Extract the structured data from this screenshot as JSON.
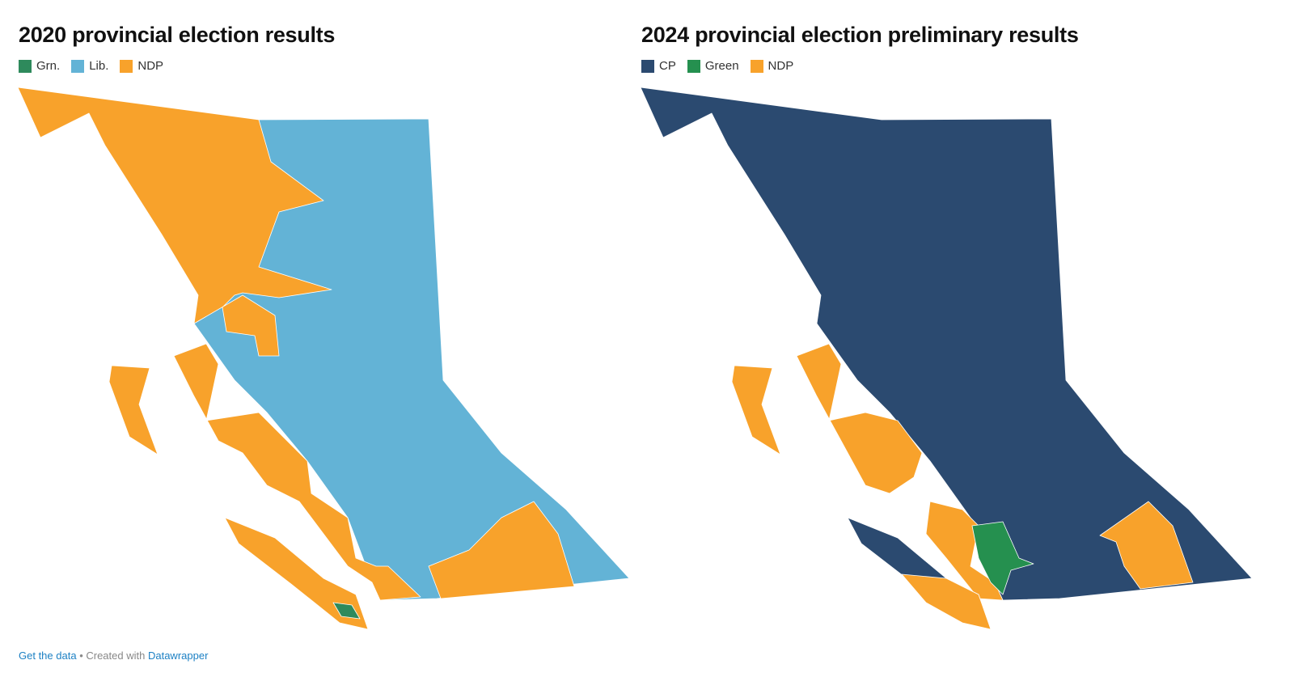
{
  "maps": [
    {
      "title": "2020 provincial election results",
      "legend": [
        {
          "label": "Grn.",
          "color": "#2e8a5c"
        },
        {
          "label": "Lib.",
          "color": "#63b3d6"
        },
        {
          "label": "NDP",
          "color": "#f8a22b"
        }
      ]
    },
    {
      "title": "2024 provincial election preliminary results",
      "legend": [
        {
          "label": "CP",
          "color": "#2b4a70"
        },
        {
          "label": "Green",
          "color": "#25904f"
        },
        {
          "label": "NDP",
          "color": "#f8a22b"
        }
      ]
    }
  ],
  "footer": {
    "link": "Get the data",
    "text": "• Created with",
    "brand": "Datawrapper"
  }
}
